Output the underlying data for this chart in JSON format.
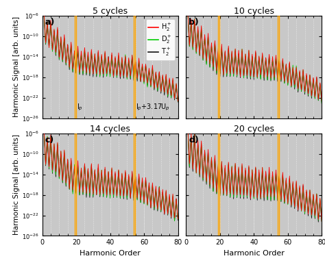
{
  "titles": [
    "5 cycles",
    "10 cycles",
    "14 cycles",
    "20 cycles"
  ],
  "panel_labels": [
    "a)",
    "b)",
    "c)",
    "d)"
  ],
  "xlim": [
    0,
    80
  ],
  "ylim_log": [
    -26,
    -6
  ],
  "ytick_exponents": [
    -26,
    -22,
    -18,
    -14,
    -10,
    -6
  ],
  "xticks": [
    0,
    20,
    40,
    60,
    80
  ],
  "vline1": 19,
  "vline2": 54,
  "vline_color": "#FFA500",
  "xlabel": "Harmonic Order",
  "ylabel": "Harmonic Signal [arb. units]",
  "colors": {
    "H2": "#FF0000",
    "D2": "#00CC00",
    "T2": "#111111"
  },
  "legend_labels": [
    "H$_2^+$",
    "D$_2^+$",
    "T$_2^+$"
  ],
  "annotation1": "I$_p$",
  "annotation2": "I$_p$+3.17U$_p$",
  "bg_color": "#C8C8C8",
  "grid_color": "#FFFFFF"
}
